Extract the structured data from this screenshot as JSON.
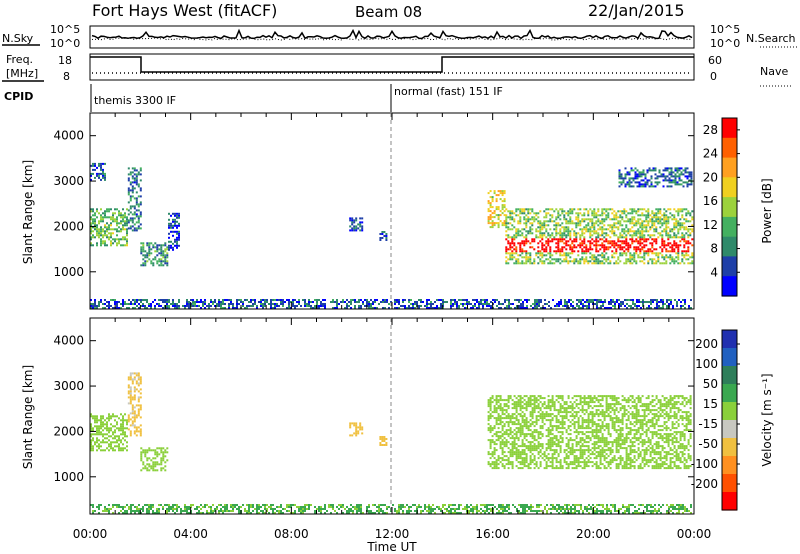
{
  "header": {
    "station": "Fort Hays West (fitACF)",
    "beam": "Beam 08",
    "date": "22/Jan/2015"
  },
  "noise_panel": {
    "left_label": "N.Sky",
    "left_ticks": [
      "10^5",
      "10^0"
    ],
    "right_label": "N.Search",
    "right_ticks": [
      "10^5",
      "10^0"
    ]
  },
  "freq_panel": {
    "left_label_line1": "Freq.",
    "left_label_line2": "[MHz]",
    "left_ticks": [
      "18",
      "8"
    ],
    "right_label": "Nave",
    "right_ticks": [
      "60",
      "0"
    ]
  },
  "cpid_panel": {
    "label": "CPID",
    "segments": [
      {
        "name": "themis 3300 IF",
        "start_hour": 0
      },
      {
        "name": "normal (fast) 151 IF",
        "start_hour": 12
      }
    ]
  },
  "chart_data": [
    {
      "type": "heatmap",
      "name": "power",
      "ylabel": "Slant Range [km]",
      "yticks": [
        1000,
        2000,
        3000,
        4000
      ],
      "ylim": [
        180,
        4500
      ],
      "xlim": [
        0,
        24
      ],
      "xtick_labels": [
        "00:00",
        "04:00",
        "08:00",
        "12:00",
        "16:00",
        "20:00",
        "00:00"
      ],
      "colorbar": {
        "label": "Power [dB]",
        "ticks": [
          "4",
          "8",
          "12",
          "16",
          "20",
          "24",
          "28"
        ],
        "range": [
          0,
          30
        ],
        "colors": [
          "#0000ff",
          "#1e3fa8",
          "#2f8a6a",
          "#44b060",
          "#9cd23c",
          "#f0d020",
          "#ffa020",
          "#ff6000",
          "#ff0000"
        ]
      },
      "regions": [
        {
          "x": [
            0.0,
            1.5
          ],
          "y": [
            1600,
            2400
          ],
          "value": 12
        },
        {
          "x": [
            0.0,
            0.6
          ],
          "y": [
            3000,
            3400
          ],
          "value": 6
        },
        {
          "x": [
            1.5,
            2.0
          ],
          "y": [
            1900,
            3300
          ],
          "value": 8
        },
        {
          "x": [
            2.0,
            3.1
          ],
          "y": [
            1150,
            1650
          ],
          "value": 10
        },
        {
          "x": [
            3.1,
            3.5
          ],
          "y": [
            1500,
            2300
          ],
          "value": 5
        },
        {
          "x": [
            10.3,
            10.8
          ],
          "y": [
            1900,
            2200
          ],
          "value": 5
        },
        {
          "x": [
            11.5,
            11.8
          ],
          "y": [
            1700,
            1900
          ],
          "value": 5
        },
        {
          "x": [
            15.8,
            16.5
          ],
          "y": [
            2000,
            2800
          ],
          "value": 18
        },
        {
          "x": [
            16.5,
            23.9
          ],
          "y": [
            1200,
            2400
          ],
          "value": 14
        },
        {
          "x": [
            21.0,
            23.9
          ],
          "y": [
            2900,
            3300
          ],
          "value": 6
        },
        {
          "x": [
            0.0,
            23.9
          ],
          "y": [
            180,
            400
          ],
          "value": 6
        }
      ]
    },
    {
      "type": "heatmap",
      "name": "velocity",
      "ylabel": "Slant Range [km]",
      "xlabel": "Time UT",
      "yticks": [
        1000,
        2000,
        3000,
        4000
      ],
      "ylim": [
        180,
        4500
      ],
      "xlim": [
        0,
        24
      ],
      "xtick_labels": [
        "00:00",
        "04:00",
        "08:00",
        "12:00",
        "16:00",
        "20:00",
        "00:00"
      ],
      "colorbar": {
        "label": "Velocity [m s⁻¹]",
        "ticks": [
          "200",
          "100",
          "50",
          "15",
          "-15",
          "-50",
          "-100",
          "-200"
        ],
        "colors": [
          "#2030b0",
          "#2060c0",
          "#2e7e5a",
          "#3aa850",
          "#8ad03a",
          "#c8c8c0",
          "#f0c040",
          "#ff9020",
          "#ff5000",
          "#ff0000"
        ]
      },
      "regions": [
        {
          "x": [
            0.0,
            1.5
          ],
          "y": [
            1600,
            2400
          ],
          "value": 0
        },
        {
          "x": [
            1.5,
            2.0
          ],
          "y": [
            1900,
            3300
          ],
          "value": -60
        },
        {
          "x": [
            2.0,
            3.1
          ],
          "y": [
            1150,
            1650
          ],
          "value": 0
        },
        {
          "x": [
            10.3,
            10.8
          ],
          "y": [
            1900,
            2200
          ],
          "value": -70
        },
        {
          "x": [
            11.5,
            11.8
          ],
          "y": [
            1700,
            1900
          ],
          "value": -80
        },
        {
          "x": [
            15.8,
            23.9
          ],
          "y": [
            1200,
            2800
          ],
          "value": 0
        },
        {
          "x": [
            0.0,
            23.9
          ],
          "y": [
            180,
            400
          ],
          "value": 20
        }
      ]
    }
  ]
}
